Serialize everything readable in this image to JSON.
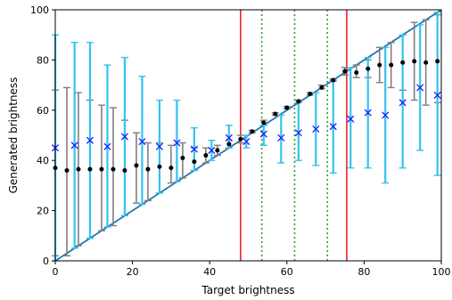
{
  "chart_data": {
    "type": "scatter",
    "xlabel": "Target brightness",
    "ylabel": "Generated brightness",
    "xlim": [
      0,
      100
    ],
    "ylim": [
      0,
      100
    ],
    "xticks": [
      0,
      20,
      40,
      60,
      80,
      100
    ],
    "yticks": [
      0,
      20,
      40,
      60,
      80,
      100
    ],
    "grid": false,
    "identity_line": {
      "from": [
        0,
        0
      ],
      "to": [
        100,
        100
      ],
      "color": "#1f77b4"
    },
    "vertical_lines": [
      {
        "x": 48,
        "style": "solid",
        "color": "#e8272a"
      },
      {
        "x": 75.5,
        "style": "solid",
        "color": "#e8272a"
      },
      {
        "x": 53.5,
        "style": "dotted",
        "color": "#2ca02c"
      },
      {
        "x": 62,
        "style": "dotted",
        "color": "#2ca02c"
      },
      {
        "x": 70.5,
        "style": "dotted",
        "color": "#2ca02c"
      }
    ],
    "series": [
      {
        "marker": "dot",
        "color": "#000000",
        "errorbar_color": "#7f7f7f",
        "points": [
          {
            "x": 0.0,
            "y": 37,
            "lo": 2,
            "hi": 68
          },
          {
            "x": 3.0,
            "y": 36,
            "lo": 2,
            "hi": 69
          },
          {
            "x": 6.0,
            "y": 36.5,
            "lo": 6,
            "hi": 67
          },
          {
            "x": 9.0,
            "y": 36.5,
            "lo": 9,
            "hi": 64
          },
          {
            "x": 12.0,
            "y": 36.5,
            "lo": 12,
            "hi": 62
          },
          {
            "x": 15.0,
            "y": 36.5,
            "lo": 14,
            "hi": 61
          },
          {
            "x": 18.0,
            "y": 36,
            "lo": 18,
            "hi": 56
          },
          {
            "x": 21.0,
            "y": 38,
            "lo": 23,
            "hi": 51
          },
          {
            "x": 24.0,
            "y": 36.5,
            "lo": 24,
            "hi": 47
          },
          {
            "x": 27.0,
            "y": 37.5,
            "lo": 27,
            "hi": 47
          },
          {
            "x": 30.0,
            "y": 37,
            "lo": 31,
            "hi": 46
          },
          {
            "x": 33.0,
            "y": 41,
            "lo": 33,
            "hi": 47
          },
          {
            "x": 36.0,
            "y": 39.5,
            "lo": 36,
            "hi": 45
          },
          {
            "x": 39.0,
            "y": 42,
            "lo": 39,
            "hi": 45
          },
          {
            "x": 42.0,
            "y": 44,
            "lo": 42,
            "hi": 46
          },
          {
            "x": 45.0,
            "y": 46.5,
            "lo": 45,
            "hi": 48
          },
          {
            "x": 48.0,
            "y": 48.5,
            "lo": 47,
            "hi": 50
          },
          {
            "x": 51.0,
            "y": 51.5,
            "lo": 51,
            "hi": 52
          },
          {
            "x": 54.0,
            "y": 55,
            "lo": 54,
            "hi": 56
          },
          {
            "x": 57.0,
            "y": 58.5,
            "lo": 58,
            "hi": 59
          },
          {
            "x": 60.0,
            "y": 61,
            "lo": 60.5,
            "hi": 61.5
          },
          {
            "x": 63.0,
            "y": 63.5,
            "lo": 63,
            "hi": 64
          },
          {
            "x": 66.0,
            "y": 66.5,
            "lo": 66,
            "hi": 67
          },
          {
            "x": 69.0,
            "y": 69,
            "lo": 68.5,
            "hi": 70
          },
          {
            "x": 72.0,
            "y": 72,
            "lo": 71.5,
            "hi": 72.5
          },
          {
            "x": 75.0,
            "y": 75.5,
            "lo": 74,
            "hi": 77
          },
          {
            "x": 78.0,
            "y": 75,
            "lo": 73,
            "hi": 78
          },
          {
            "x": 81.0,
            "y": 76.5,
            "lo": 73,
            "hi": 80
          },
          {
            "x": 84.0,
            "y": 78,
            "lo": 71,
            "hi": 85
          },
          {
            "x": 87.0,
            "y": 78,
            "lo": 69,
            "hi": 87
          },
          {
            "x": 90.0,
            "y": 79,
            "lo": 68,
            "hi": 90
          },
          {
            "x": 93.0,
            "y": 79.5,
            "lo": 64,
            "hi": 95
          },
          {
            "x": 96.0,
            "y": 79,
            "lo": 62,
            "hi": 96
          },
          {
            "x": 99.0,
            "y": 79.5,
            "lo": 63,
            "hi": 98
          }
        ]
      },
      {
        "marker": "x",
        "color": "#1a1aff",
        "errorbar_color": "#33c3f0",
        "points": [
          {
            "x": 0.0,
            "y": 45,
            "lo": 0,
            "hi": 90
          },
          {
            "x": 5.0,
            "y": 46,
            "lo": 5,
            "hi": 87
          },
          {
            "x": 9.0,
            "y": 48,
            "lo": 9,
            "hi": 87
          },
          {
            "x": 13.5,
            "y": 45.5,
            "lo": 13.5,
            "hi": 78
          },
          {
            "x": 18.0,
            "y": 49.5,
            "lo": 18,
            "hi": 81
          },
          {
            "x": 22.5,
            "y": 47.5,
            "lo": 22.5,
            "hi": 73.5
          },
          {
            "x": 27.0,
            "y": 45.5,
            "lo": 27,
            "hi": 64
          },
          {
            "x": 31.5,
            "y": 47,
            "lo": 31.5,
            "hi": 64
          },
          {
            "x": 36.0,
            "y": 44.5,
            "lo": 36,
            "hi": 53
          },
          {
            "x": 40.5,
            "y": 44,
            "lo": 40,
            "hi": 48
          },
          {
            "x": 45.0,
            "y": 49,
            "lo": 45,
            "hi": 54
          },
          {
            "x": 49.5,
            "y": 47.5,
            "lo": 45,
            "hi": 50
          },
          {
            "x": 54.0,
            "y": 50.5,
            "lo": 46,
            "hi": 54
          },
          {
            "x": 58.5,
            "y": 49,
            "lo": 39,
            "hi": 58
          },
          {
            "x": 63.0,
            "y": 51,
            "lo": 40,
            "hi": 63
          },
          {
            "x": 67.5,
            "y": 52.5,
            "lo": 38,
            "hi": 67
          },
          {
            "x": 72.0,
            "y": 53.5,
            "lo": 35,
            "hi": 72
          },
          {
            "x": 76.5,
            "y": 56.5,
            "lo": 37,
            "hi": 77
          },
          {
            "x": 81.0,
            "y": 59,
            "lo": 37,
            "hi": 81
          },
          {
            "x": 85.5,
            "y": 58,
            "lo": 31,
            "hi": 85
          },
          {
            "x": 90.0,
            "y": 63,
            "lo": 37,
            "hi": 90
          },
          {
            "x": 94.5,
            "y": 69,
            "lo": 44,
            "hi": 94
          },
          {
            "x": 99.0,
            "y": 66,
            "lo": 34,
            "hi": 99
          }
        ]
      }
    ]
  }
}
